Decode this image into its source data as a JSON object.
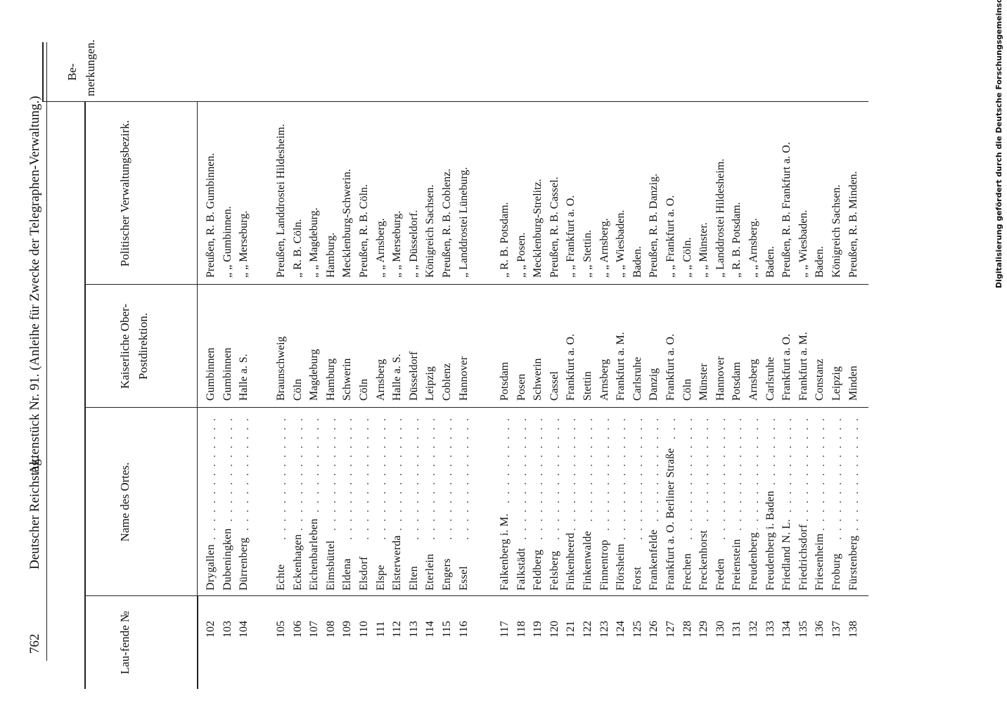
{
  "header": {
    "page": "762",
    "left": "Deutscher Reichstag.",
    "title": "Aktenstück Nr. 91. (Anleihe für Zwecke der Telegraphen-Verwaltung.)"
  },
  "table": {
    "columns": [
      "Lau-fende №",
      "Name des Ortes.",
      "Kaiserliche Ober-Postdirektion.",
      "Politischer Verwaltungsbezirk.",
      "Be-merkungen."
    ],
    "groups": [
      [
        [
          "102",
          "Drygallen",
          "Gumbinnen",
          "Preußen, R. B. Gumbinnen."
        ],
        [
          "103",
          "Dubeningken",
          "Gumbinnen",
          "„   „   Gumbinnen."
        ],
        [
          "104",
          "Dürrenberg",
          "Halle a. S.",
          "„   „   Merseburg."
        ]
      ],
      [
        [
          "105",
          "Echte",
          "Braunschweig",
          "Preußen, Landdrostei Hildesheim."
        ],
        [
          "106",
          "Eckenhagen",
          "Cöln",
          "„   R. B. Cöln."
        ],
        [
          "107",
          "Eichenbarleben",
          "Magdeburg",
          "„   „   Magdeburg."
        ],
        [
          "108",
          "Eimsbüttel",
          "Hamburg",
          "Hamburg."
        ],
        [
          "109",
          "Eldena",
          "Schwerin",
          "Mecklenburg-Schwerin."
        ],
        [
          "110",
          "Elsdorf",
          "Cöln",
          "Preußen, R. B. Cöln."
        ],
        [
          "111",
          "Elspe",
          "Arnsberg",
          "„   „   Arnsberg."
        ],
        [
          "112",
          "Elsterwerda",
          "Halle a. S.",
          "„   „   Merseburg."
        ],
        [
          "113",
          "Elten",
          "Düsseldorf",
          "„   „   Düsseldorf."
        ],
        [
          "114",
          "Eterlein",
          "Leipzig",
          "Königreich Sachsen."
        ],
        [
          "115",
          "Engers",
          "Coblenz",
          "Preußen, R. B. Coblenz."
        ],
        [
          "116",
          "Essel",
          "Hannover",
          "„   Landdrostei Lüneburg."
        ]
      ],
      [
        [
          "117",
          "Falkenberg i. M.",
          "Potsdam",
          "„   R. B. Potsdam."
        ],
        [
          "118",
          "Falkstädt",
          "Posen",
          "„   „   Posen."
        ],
        [
          "119",
          "Feldberg",
          "Schwerin",
          "Mecklenburg-Strelitz."
        ],
        [
          "120",
          "Felsberg",
          "Cassel",
          "Preußen, R. B. Cassel."
        ],
        [
          "121",
          "Finkenheerd",
          "Frankfurt a. O.",
          "„   „   Frankfurt a. O."
        ],
        [
          "122",
          "Finkenwalde",
          "Stettin",
          "„   „   Stettin."
        ],
        [
          "123",
          "Finnentrop",
          "Arnsberg",
          "„   „   Arnsberg."
        ],
        [
          "124",
          "Flörsheim",
          "Frankfurt a. M.",
          "„   „   Wiesbaden."
        ],
        [
          "125",
          "Forst",
          "Carlsruhe",
          "Baden."
        ],
        [
          "126",
          "Frankenfelde",
          "Danzig",
          "Preußen, R. B. Danzig."
        ],
        [
          "127",
          "Frankfurt a. O. Berliner Straße",
          "Frankfurt a. O.",
          "„   „   Frankfurt a. O."
        ],
        [
          "128",
          "Frechen",
          "Cöln",
          "„   „   Cöln."
        ],
        [
          "129",
          "Freckenhorst",
          "Münster",
          "„   „   Münster."
        ],
        [
          "130",
          "Freden",
          "Hannover",
          "„   Landdrostei Hildesheim."
        ],
        [
          "131",
          "Freienstein",
          "Potsdam",
          "„   R. B. Potsdam."
        ],
        [
          "132",
          "Freudenberg",
          "Arnsberg",
          "„   „   Arnsberg."
        ],
        [
          "133",
          "Freudenberg i. Baden",
          "Carlsruhe",
          "Baden."
        ],
        [
          "134",
          "Friedland N. L.",
          "Frankfurt a. O.",
          "Preußen, R. B. Frankfurt a. O."
        ],
        [
          "135",
          "Friedrichsdorf",
          "Frankfurt a. M.",
          "„   „   Wiesbaden."
        ],
        [
          "136",
          "Friesenheim",
          "Constanz",
          "Baden."
        ],
        [
          "137",
          "Froburg",
          "Leipzig",
          "Königreich Sachsen."
        ],
        [
          "138",
          "Fürstenberg",
          "Minden",
          "Preußen, R. B. Minden."
        ]
      ]
    ]
  },
  "footer": {
    "credit": "Digitalisierung gefördert durch die Deutsche Forschungsgemeinschaft · DFG"
  }
}
